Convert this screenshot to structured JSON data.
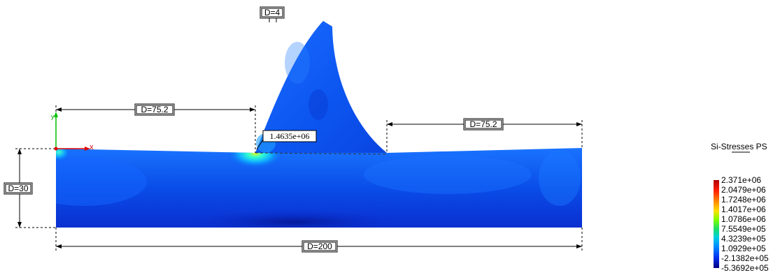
{
  "dimensions": {
    "gap": "D=4",
    "left_span": "D=75.2",
    "right_span": "D=75.2",
    "height": "D=30",
    "width": "D=200"
  },
  "annotation": {
    "peak_value": "1.4635e+06"
  },
  "axes_marker": {
    "x_label": "x",
    "y_label": "y"
  },
  "legend": {
    "title": "Si-Stresses PS",
    "ticks": [
      "2.371e+06",
      "2.0479e+06",
      "1.7248e+06",
      "1.4017e+06",
      "1.0786e+06",
      "7.5549e+05",
      "4.3239e+05",
      "1.0929e+05",
      "-2.1382e+05",
      "-5.3692e+05"
    ],
    "colors": [
      "#b00000",
      "#ff4000",
      "#ffa000",
      "#ffe000",
      "#a0ff00",
      "#20e040",
      "#00d0d0",
      "#0090ff",
      "#0040ff",
      "#000090"
    ]
  }
}
